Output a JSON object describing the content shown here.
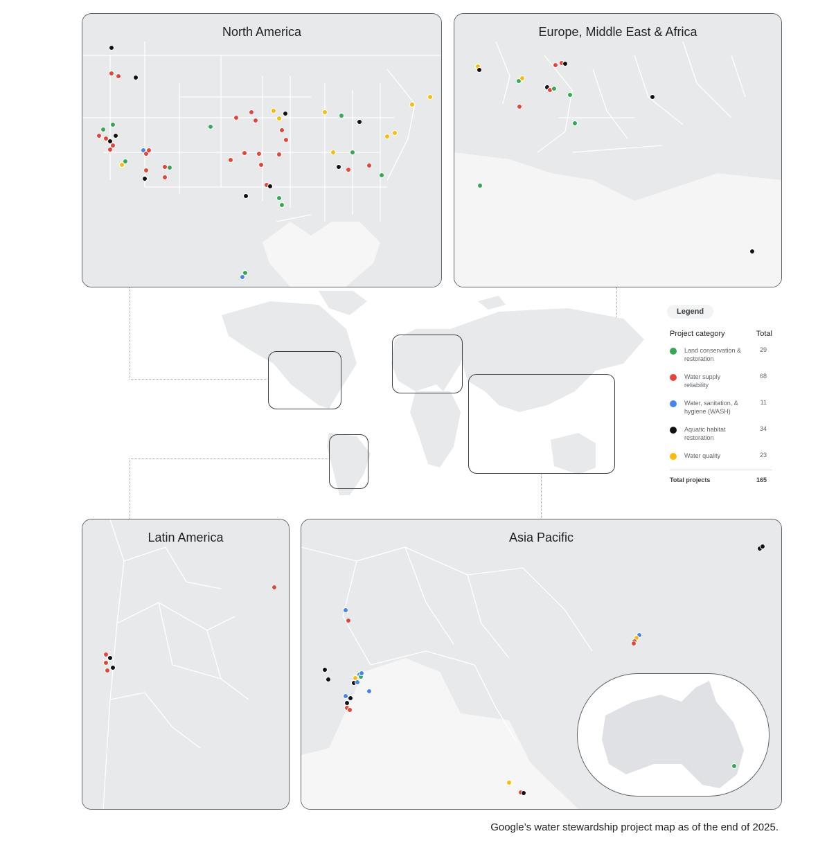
{
  "panels": {
    "north_america": "North America",
    "emea": "Europe, Middle East & Africa",
    "latin_america": "Latin America",
    "asia_pacific": "Asia Pacific"
  },
  "legend": {
    "badge": "Legend",
    "col_category": "Project category",
    "col_total": "Total",
    "items": [
      {
        "label": "Land conservation & restoration",
        "total": "29",
        "color": "#34a853"
      },
      {
        "label": "Water supply reliability",
        "total": "68",
        "color": "#ea4335"
      },
      {
        "label": "Water, sanitation, & hygiene (WASH)",
        "total": "11",
        "color": "#4285f4"
      },
      {
        "label": "Aquatic habitat restoration",
        "total": "34",
        "color": "#111111"
      },
      {
        "label": "Water quality",
        "total": "23",
        "color": "#fbbc04"
      }
    ],
    "total_label": "Total projects",
    "total_value": "165"
  },
  "caption": "Google’s water stewardship project map as of the end of 2025."
}
